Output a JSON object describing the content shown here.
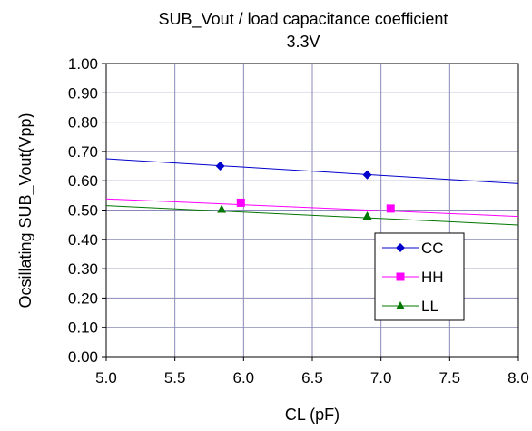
{
  "chart_data": {
    "type": "line",
    "title": "SUB_Vout  / load capacitance coefficient",
    "subtitle": "3.3V",
    "xlabel": "CL (pF)",
    "ylabel": "Ocsillating SUB_Vout(Vpp)",
    "xlim": [
      5.0,
      8.0
    ],
    "ylim": [
      0.0,
      1.0
    ],
    "x_ticks": [
      "5.0",
      "5.5",
      "6.0",
      "6.5",
      "7.0",
      "7.5",
      "8.0"
    ],
    "y_ticks": [
      "0.00",
      "0.10",
      "0.20",
      "0.30",
      "0.40",
      "0.50",
      "0.60",
      "0.70",
      "0.80",
      "0.90",
      "1.00"
    ],
    "grid": true,
    "legend_position": "right",
    "series": [
      {
        "name": "CC",
        "color": "#0000cc",
        "marker": "diamond",
        "points": [
          [
            5.83,
            0.65
          ],
          [
            6.9,
            0.62
          ]
        ],
        "trend": [
          [
            5.0,
            0.675
          ],
          [
            8.0,
            0.59
          ]
        ]
      },
      {
        "name": "HH",
        "color": "#ff00ff",
        "marker": "square",
        "points": [
          [
            5.98,
            0.525
          ],
          [
            7.07,
            0.505
          ]
        ],
        "trend": [
          [
            5.0,
            0.538
          ],
          [
            8.0,
            0.478
          ]
        ]
      },
      {
        "name": "LL",
        "color": "#007700",
        "marker": "triangle",
        "points": [
          [
            5.84,
            0.503
          ],
          [
            6.9,
            0.48
          ]
        ],
        "trend": [
          [
            5.0,
            0.515
          ],
          [
            8.0,
            0.449
          ]
        ]
      }
    ]
  }
}
